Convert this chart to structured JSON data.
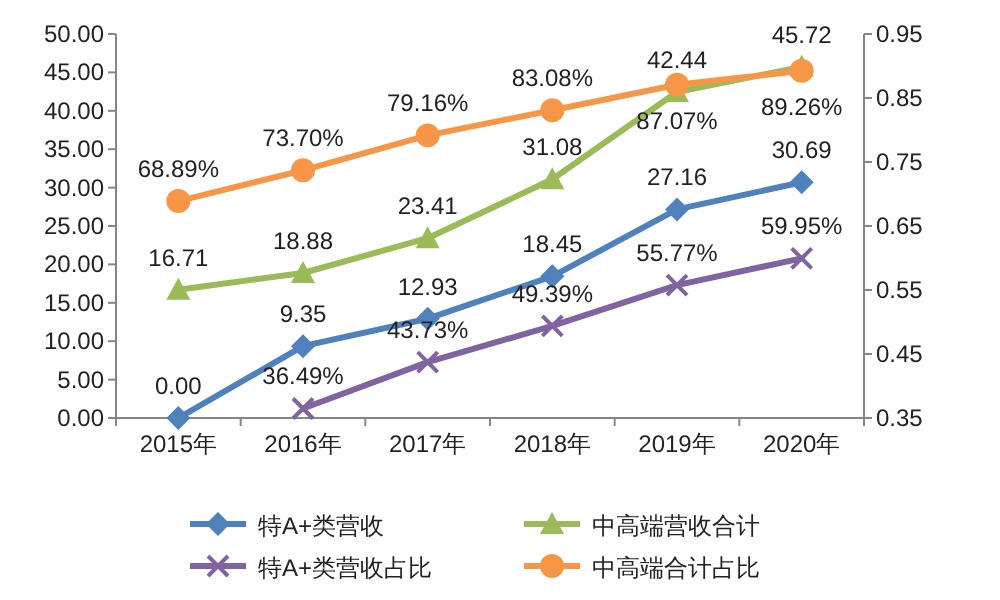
{
  "chart_data": {
    "type": "line",
    "categories": [
      "2015年",
      "2016年",
      "2017年",
      "2018年",
      "2019年",
      "2020年"
    ],
    "ylim": [
      0,
      50
    ],
    "yticks": [
      {
        "value": 0,
        "label": "0.00"
      },
      {
        "value": 5,
        "label": "5.00"
      },
      {
        "value": 10,
        "label": "10.00"
      },
      {
        "value": 15,
        "label": "15.00"
      },
      {
        "value": 20,
        "label": "20.00"
      },
      {
        "value": 25,
        "label": "25.00"
      },
      {
        "value": 30,
        "label": "30.00"
      },
      {
        "value": 35,
        "label": "35.00"
      },
      {
        "value": 40,
        "label": "40.00"
      },
      {
        "value": 45,
        "label": "45.00"
      },
      {
        "value": 50,
        "label": "50.00"
      }
    ],
    "y2lim": [
      0.35,
      0.95
    ],
    "y2ticks": [
      0.35,
      0.45,
      0.55,
      0.65,
      0.75,
      0.85,
      0.95
    ],
    "grid": false,
    "legend": "bottom",
    "series": [
      {
        "name": "特A+类营收",
        "color": "#4f81bd",
        "marker": "diamond",
        "values": [
          0,
          9.35,
          12.93,
          18.45,
          27.16,
          30.69
        ],
        "value_labels": [
          "0.00",
          "9.35",
          "12.93",
          "18.45",
          "27.16",
          "30.69"
        ]
      },
      {
        "name": "中高端营收合计",
        "color": "#9bbb59",
        "marker": "triangle",
        "values": [
          16.71,
          18.88,
          23.41,
          31.08,
          42.44,
          45.72
        ],
        "value_labels": [
          "16.71",
          "18.88",
          "23.41",
          "31.08",
          "42.44",
          "45.72"
        ]
      },
      {
        "name": "特A+类营收占比",
        "color": "#8064a2",
        "marker": "cross",
        "axis": "y2",
        "values": [
          null,
          0.3649,
          0.4373,
          0.4939,
          0.5577,
          0.5995
        ],
        "value_labels": [
          null,
          "36.49%",
          "43.73%",
          "49.39%",
          "55.77%",
          "59.95%"
        ]
      },
      {
        "name": "中高端合计占比",
        "color": "#f79646",
        "marker": "circle",
        "axis": "y2",
        "values": [
          0.6889,
          0.737,
          0.7916,
          0.8308,
          0.8707,
          0.8926
        ],
        "value_labels": [
          "68.89%",
          "73.70%",
          "79.16%",
          "83.08%",
          "87.07%",
          "89.26%"
        ]
      }
    ]
  }
}
